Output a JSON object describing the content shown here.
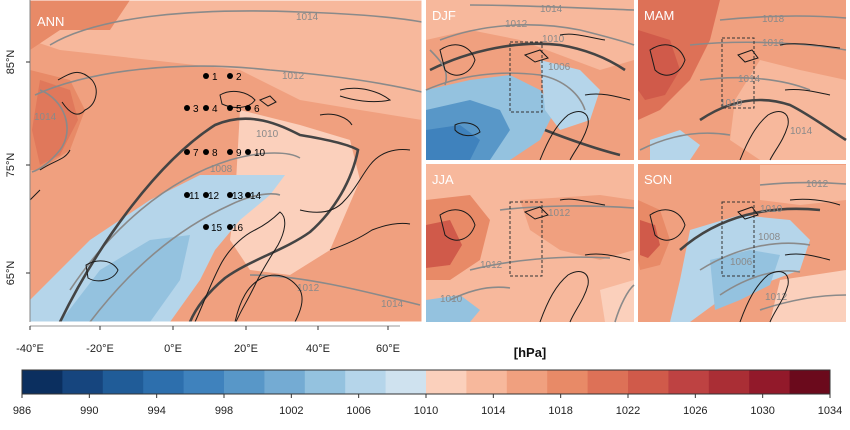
{
  "panels": {
    "ann": {
      "label": "ANN"
    },
    "djf": {
      "label": "DJF"
    },
    "mam": {
      "label": "MAM"
    },
    "jja": {
      "label": "JJA"
    },
    "son": {
      "label": "SON"
    }
  },
  "axes": {
    "lat_ticks": [
      "85°N",
      "75°N",
      "65°N"
    ],
    "lon_ticks": [
      "-40°E",
      "-20°E",
      "0°E",
      "20°E",
      "40°E",
      "60°E"
    ]
  },
  "isobar_labels": {
    "ann": [
      "1014",
      "1012",
      "1014",
      "1010",
      "1008",
      "1012",
      "1014"
    ],
    "djf": [
      "1014",
      "1012",
      "1010",
      "1006"
    ],
    "mam": [
      "1018",
      "1016",
      "1014",
      "1010",
      "1014"
    ],
    "jja": [
      "1012",
      "1012",
      "1010"
    ],
    "son": [
      "1012",
      "1010",
      "1008",
      "1006",
      "1012"
    ]
  },
  "stations": [
    "1",
    "2",
    "3",
    "4",
    "5",
    "6",
    "7",
    "8",
    "9",
    "10",
    "11",
    "12",
    "13",
    "14",
    "15",
    "16"
  ],
  "colorbar": {
    "unit": "[hPa]",
    "ticks": [
      "986",
      "990",
      "994",
      "998",
      "1002",
      "1006",
      "1010",
      "1014",
      "1018",
      "1022",
      "1026",
      "1030",
      "1034"
    ],
    "colors": [
      "#0b2f5f",
      "#16457e",
      "#205c98",
      "#2d6fad",
      "#3f82bd",
      "#5897c8",
      "#74abd3",
      "#94c2df",
      "#b5d5ea",
      "#cfe2ef",
      "#fbd0bc",
      "#f7b89c",
      "#f0a07f",
      "#e88a67",
      "#dd7157",
      "#d05a4a",
      "#be4242",
      "#aa2e35",
      "#92192a",
      "#6b0a1c"
    ]
  },
  "colors": {
    "high": "#f0a07f",
    "mid_high": "#f7b89c",
    "low": "#94c2df",
    "lower": "#5897c8",
    "strong_high": "#dd7157"
  }
}
